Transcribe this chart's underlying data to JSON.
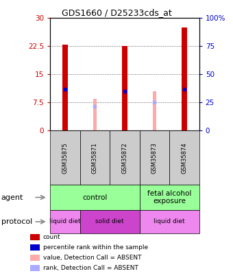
{
  "title": "GDS1660 / D25233cds_at",
  "samples": [
    "GSM35875",
    "GSM35871",
    "GSM35872",
    "GSM35873",
    "GSM35874"
  ],
  "red_bar_heights": [
    23.0,
    0,
    22.5,
    0,
    27.5
  ],
  "pink_bar_heights": [
    0,
    8.5,
    0,
    10.5,
    0
  ],
  "blue_marker_y": [
    11.0,
    0,
    10.5,
    0,
    11.0
  ],
  "light_blue_marker_y": [
    0,
    6.5,
    0,
    7.5,
    0
  ],
  "ylim_left": [
    0,
    30
  ],
  "ylim_right": [
    0,
    100
  ],
  "yticks_left": [
    0,
    7.5,
    15,
    22.5,
    30
  ],
  "yticks_right": [
    0,
    25,
    50,
    75,
    100
  ],
  "ytick_labels_left": [
    "0",
    "7.5",
    "15",
    "22.5",
    "30"
  ],
  "ytick_labels_right": [
    "0",
    "25",
    "50",
    "75",
    "100%"
  ],
  "red_color": "#cc0000",
  "pink_color": "#ffaaaa",
  "blue_color": "#0000cc",
  "light_blue_color": "#aaaaff",
  "bar_width": 0.18,
  "pink_bar_width": 0.12,
  "agent_row": [
    {
      "label": "control",
      "span": [
        0,
        3
      ],
      "color": "#99ff99"
    },
    {
      "label": "fetal alcohol\nexposure",
      "span": [
        3,
        5
      ],
      "color": "#99ff99"
    }
  ],
  "protocol_row": [
    {
      "label": "liquid diet",
      "span": [
        0,
        1
      ],
      "color": "#ee88ee"
    },
    {
      "label": "solid diet",
      "span": [
        1,
        3
      ],
      "color": "#cc44cc"
    },
    {
      "label": "liquid diet",
      "span": [
        3,
        5
      ],
      "color": "#ee88ee"
    }
  ],
  "legend_items": [
    {
      "color": "#cc0000",
      "label": "count"
    },
    {
      "color": "#0000cc",
      "label": "percentile rank within the sample"
    },
    {
      "color": "#ffaaaa",
      "label": "value, Detection Call = ABSENT"
    },
    {
      "color": "#aaaaff",
      "label": "rank, Detection Call = ABSENT"
    }
  ],
  "left_color": "#cc0000",
  "right_color": "#0000cc",
  "bg_color": "#ffffff",
  "grid_color": "#555555",
  "sample_box_color": "#cccccc"
}
